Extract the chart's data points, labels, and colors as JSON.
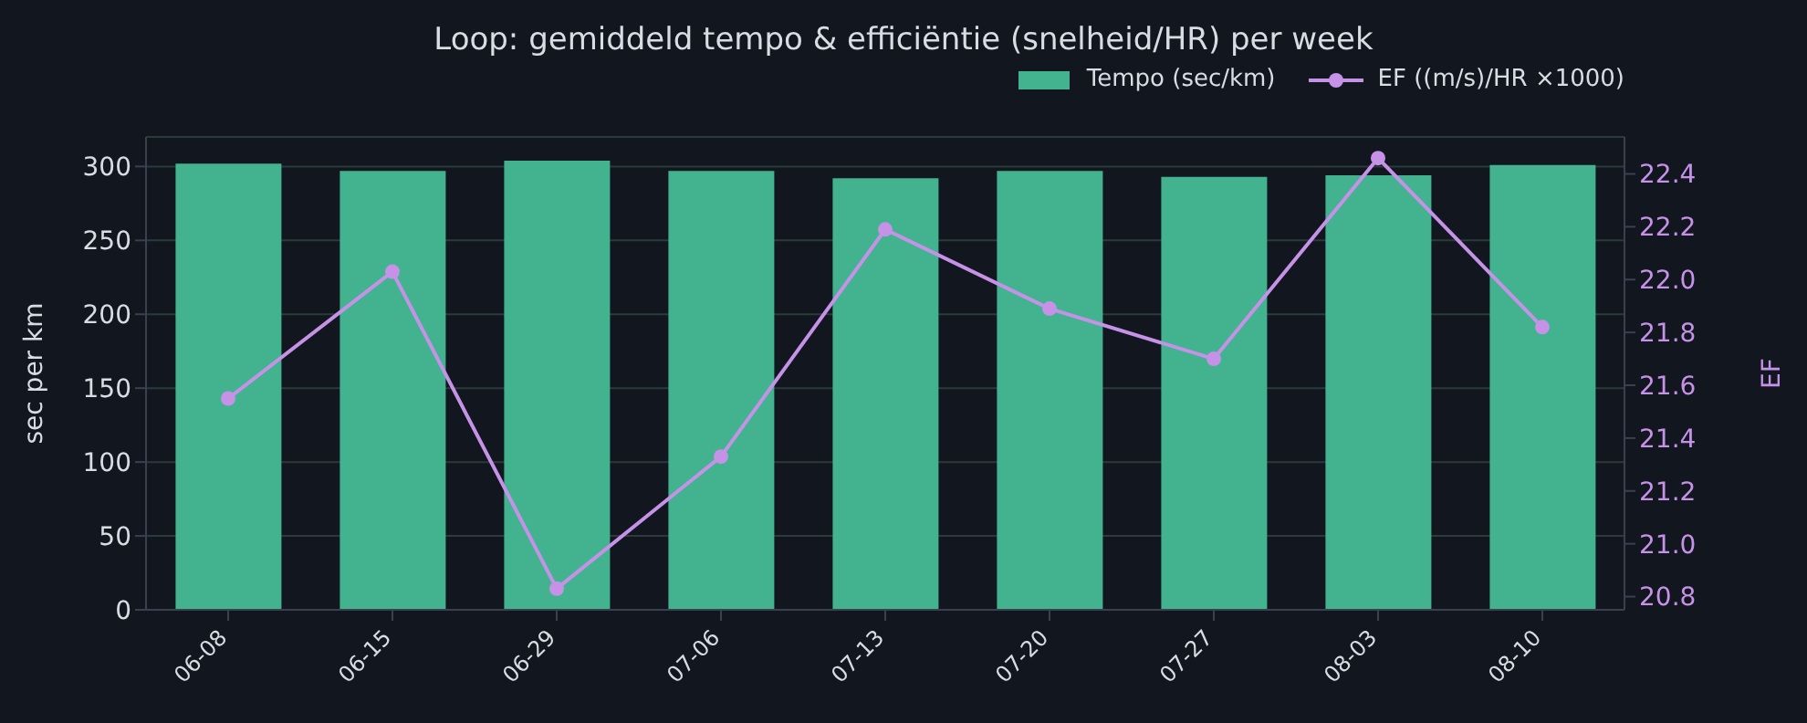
{
  "chart_data": {
    "type": "bar",
    "title": "Loop: gemiddeld tempo & efficiëntie (snelheid/HR) per week",
    "ylabel": "sec per km",
    "y2label": "EF",
    "categories": [
      "06-08",
      "06-15",
      "06-29",
      "07-06",
      "07-13",
      "07-20",
      "07-27",
      "08-03",
      "08-10"
    ],
    "series": [
      {
        "name": "Tempo (sec/km)",
        "color": "#43b38f",
        "values": [
          302,
          297,
          304,
          297,
          292,
          297,
          293,
          294,
          301
        ]
      },
      {
        "name": "EF ((m/s)/HR ×1000)",
        "type": "line",
        "axis": "y2",
        "color": "#c592e8",
        "values": [
          21.55,
          22.03,
          20.83,
          21.33,
          22.19,
          21.89,
          21.7,
          22.46,
          21.82
        ]
      }
    ],
    "ylim": [
      0,
      320
    ],
    "yticks": [
      0,
      50,
      100,
      150,
      200,
      250,
      300
    ],
    "y2lim": [
      20.75,
      22.54
    ],
    "y2ticks": [
      20.8,
      {
        "value": 21,
        "label": "21.0"
      },
      21.2,
      21.4,
      21.6,
      21.8,
      {
        "value": 22,
        "label": "22.0"
      },
      22.2,
      22.4
    ],
    "grid": "y",
    "legend": "top right",
    "marker": "circle"
  }
}
